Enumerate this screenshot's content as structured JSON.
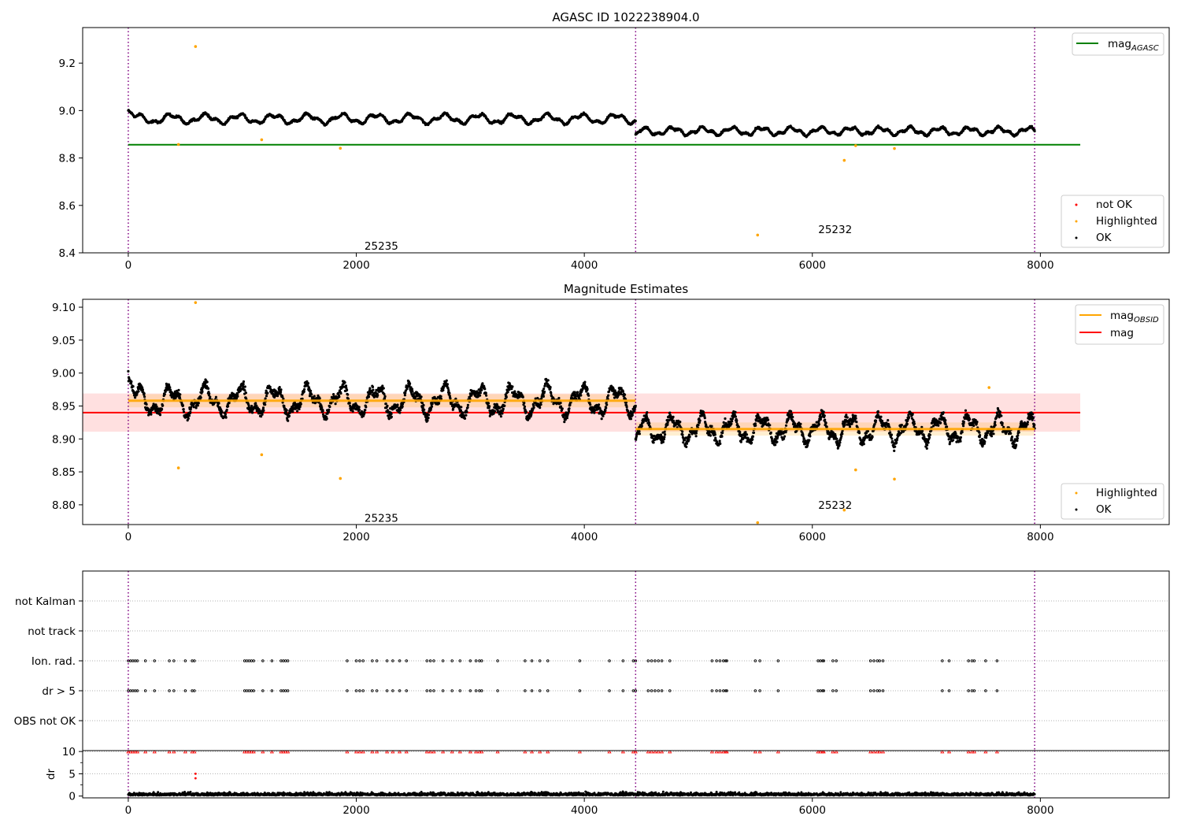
{
  "chart_data": [
    {
      "type": "scatter",
      "title": "AGASC ID 1022238904.0",
      "xlabel": "",
      "ylabel": "",
      "xlim": [
        -400,
        9130
      ],
      "ylim": [
        8.4,
        9.35
      ],
      "x_ticks": [
        0,
        2000,
        4000,
        6000,
        8000
      ],
      "y_ticks": [
        8.4,
        8.6,
        8.8,
        9.0,
        9.2
      ],
      "y_tick_decimals": 1,
      "obsid_boundaries": [
        0,
        4450,
        7950
      ],
      "obsid_labels": [
        {
          "text": "25235",
          "x": 2220,
          "y": 8.43
        },
        {
          "text": "25232",
          "x": 6200,
          "y": 8.5
        }
      ],
      "hlines": [
        {
          "label": "mag_AGASC",
          "y": 8.856,
          "x": [
            0,
            8350
          ],
          "color": "#008000"
        }
      ],
      "segments": [
        {
          "x0": 0,
          "x1": 4450,
          "base": 8.965,
          "amp": 0.022,
          "period": 300,
          "start": 9.0
        },
        {
          "x0": 4450,
          "x1": 7950,
          "base": 8.913,
          "amp": 0.018,
          "period": 260,
          "start": 8.9
        }
      ],
      "highlighted_points": [
        {
          "x": 440,
          "y": 8.857
        },
        {
          "x": 590,
          "y": 9.27
        },
        {
          "x": 1170,
          "y": 8.877
        },
        {
          "x": 1860,
          "y": 8.841
        },
        {
          "x": 5520,
          "y": 8.475
        },
        {
          "x": 6280,
          "y": 8.79
        },
        {
          "x": 6380,
          "y": 8.852
        },
        {
          "x": 6720,
          "y": 8.84
        }
      ],
      "legend_top": {
        "position": "upper right",
        "entries": [
          {
            "label": "mag",
            "sub": "AGASC",
            "color": "#008000"
          }
        ]
      },
      "legend_bottom": {
        "position": "lower right",
        "entries": [
          {
            "label": "not OK",
            "color": "#ff0000"
          },
          {
            "label": "Highlighted",
            "color": "#ffa500"
          },
          {
            "label": "OK",
            "color": "#000000"
          }
        ]
      }
    },
    {
      "type": "scatter",
      "title": "Magnitude Estimates",
      "xlabel": "",
      "ylabel": "",
      "xlim": [
        -400,
        9130
      ],
      "ylim": [
        8.77,
        9.112
      ],
      "x_ticks": [
        0,
        2000,
        4000,
        6000,
        8000
      ],
      "y_ticks": [
        8.8,
        8.85,
        8.9,
        8.95,
        9.0,
        9.05,
        9.1
      ],
      "y_tick_decimals": 2,
      "obsid_boundaries": [
        0,
        4450,
        7950
      ],
      "obsid_labels": [
        {
          "text": "25235",
          "x": 2220,
          "y": 8.78
        },
        {
          "text": "25232",
          "x": 6200,
          "y": 8.8
        }
      ],
      "mag": {
        "y": 8.94,
        "band": [
          8.911,
          8.969
        ],
        "x": [
          -400,
          8350
        ],
        "color": "#ff0000"
      },
      "mag_obsid": [
        {
          "x0": 0,
          "x1": 4450,
          "y": 8.958,
          "band": [
            8.948,
            8.968
          ]
        },
        {
          "x0": 4450,
          "x1": 7950,
          "y": 8.915,
          "band": [
            8.905,
            8.925
          ]
        }
      ],
      "segments": [
        {
          "x0": 0,
          "x1": 4450,
          "base": 8.958,
          "amp": 0.024,
          "period": 300,
          "start": 8.995
        },
        {
          "x0": 4450,
          "x1": 7950,
          "base": 8.915,
          "amp": 0.022,
          "period": 260,
          "start": 8.9
        }
      ],
      "highlighted_points": [
        {
          "x": 440,
          "y": 8.856
        },
        {
          "x": 590,
          "y": 9.107
        },
        {
          "x": 1170,
          "y": 8.876
        },
        {
          "x": 1860,
          "y": 8.84
        },
        {
          "x": 5520,
          "y": 8.773
        },
        {
          "x": 6280,
          "y": 8.792
        },
        {
          "x": 6380,
          "y": 8.853
        },
        {
          "x": 6720,
          "y": 8.839
        },
        {
          "x": 7550,
          "y": 8.978
        }
      ],
      "legend_top": {
        "position": "upper right",
        "entries": [
          {
            "label": "mag",
            "sub": "OBSID",
            "color": "#ffa500"
          },
          {
            "label": "mag",
            "sub": "",
            "color": "#ff0000"
          }
        ]
      },
      "legend_bottom": {
        "position": "lower right",
        "entries": [
          {
            "label": "Highlighted",
            "color": "#ffa500"
          },
          {
            "label": "OK",
            "color": "#000000"
          }
        ]
      }
    },
    {
      "type": "scatter",
      "title": "",
      "xlabel": "",
      "ylabel": "",
      "xlim": [
        -400,
        9130
      ],
      "categories": [
        "OBS not OK",
        "dr > 5",
        "Ion. rad.",
        "not track",
        "not Kalman"
      ],
      "flag_rows": {
        "dr > 5": true,
        "Ion. rad.": true
      },
      "flag_times": [
        0,
        20,
        40,
        60,
        80,
        150,
        230,
        360,
        400,
        500,
        560,
        580,
        1020,
        1040,
        1060,
        1080,
        1100,
        1180,
        1260,
        1340,
        1360,
        1380,
        1400,
        1920,
        2000,
        2030,
        2060,
        2140,
        2180,
        2270,
        2320,
        2380,
        2440,
        2620,
        2650,
        2680,
        2760,
        2840,
        2910,
        3000,
        3050,
        3080,
        3100,
        3240,
        3480,
        3540,
        3610,
        3680,
        3960,
        4220,
        4340,
        4430,
        4450,
        4560,
        4590,
        4620,
        4650,
        4680,
        4750,
        5120,
        5160,
        5190,
        5220,
        5240,
        5250,
        5500,
        5540,
        5700,
        6050,
        6070,
        6090,
        6100,
        6180,
        6210,
        6510,
        6540,
        6570,
        6590,
        6620,
        7140,
        7200,
        7370,
        7400,
        7420,
        7520,
        7620
      ]
    },
    {
      "type": "scatter",
      "title": "",
      "xlabel": "",
      "ylabel": "dr",
      "xlim": [
        -400,
        9130
      ],
      "ylim": [
        -0.4,
        10.2
      ],
      "y_ticks": [
        0,
        5,
        10
      ],
      "x_ticks": [
        0,
        2000,
        4000,
        6000,
        8000
      ],
      "dr_clip": 10,
      "dr_outliers": [
        {
          "x": 590,
          "y": 4.0
        },
        {
          "x": 590,
          "y": 5.0
        }
      ],
      "dr_typical": [
        0,
        1.5
      ]
    }
  ]
}
